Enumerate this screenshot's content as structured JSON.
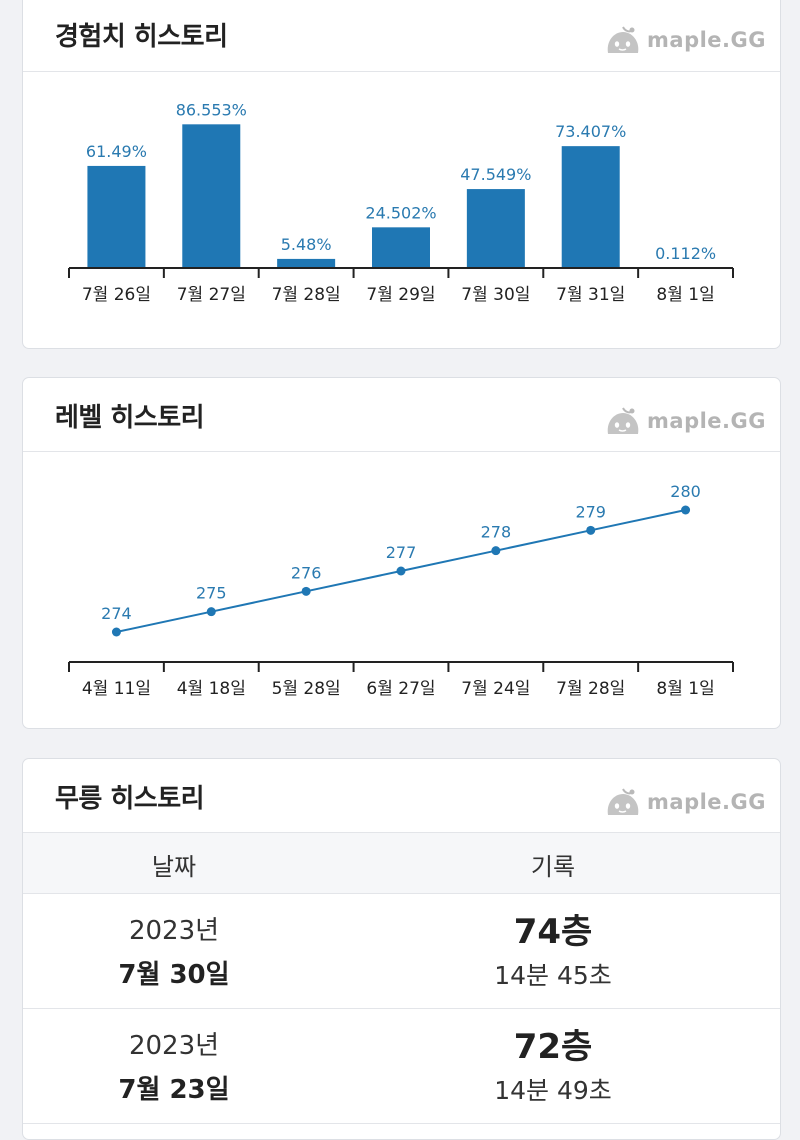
{
  "brand": {
    "logo_text": "maple.GG",
    "bar_color": "#1f77b4",
    "label_color": "#2a7ab0"
  },
  "exp_card": {
    "title": "경험치 히스토리"
  },
  "level_card": {
    "title": "레벨 히스토리"
  },
  "mureung_card": {
    "title": "무릉 히스토리",
    "headers": {
      "date": "날짜",
      "record": "기록"
    },
    "rows": [
      {
        "year": "2023년",
        "date": "7월 30일",
        "floor": "74층",
        "time": "14분 45초"
      },
      {
        "year": "2023년",
        "date": "7월 23일",
        "floor": "72층",
        "time": "14분 49초"
      }
    ]
  },
  "chart_data": [
    {
      "type": "bar",
      "categories": [
        "7월 26일",
        "7월 27일",
        "7월 28일",
        "7월 29일",
        "7월 30일",
        "7월 31일",
        "8월 1일"
      ],
      "values": [
        61.49,
        86.553,
        5.48,
        24.502,
        47.549,
        73.407,
        0.112
      ],
      "value_labels": [
        "61.49%",
        "86.553%",
        "5.48%",
        "24.502%",
        "47.549%",
        "73.407%",
        "0.112%"
      ],
      "ylim": [
        0,
        100
      ],
      "grid": false
    },
    {
      "type": "line",
      "categories": [
        "4월 11일",
        "4월 18일",
        "5월 28일",
        "6월 27일",
        "7월 24일",
        "7월 28일",
        "8월 1일"
      ],
      "values": [
        274,
        275,
        276,
        277,
        278,
        279,
        280
      ],
      "value_labels": [
        "274",
        "275",
        "276",
        "277",
        "278",
        "279",
        "280"
      ],
      "grid": false
    }
  ]
}
